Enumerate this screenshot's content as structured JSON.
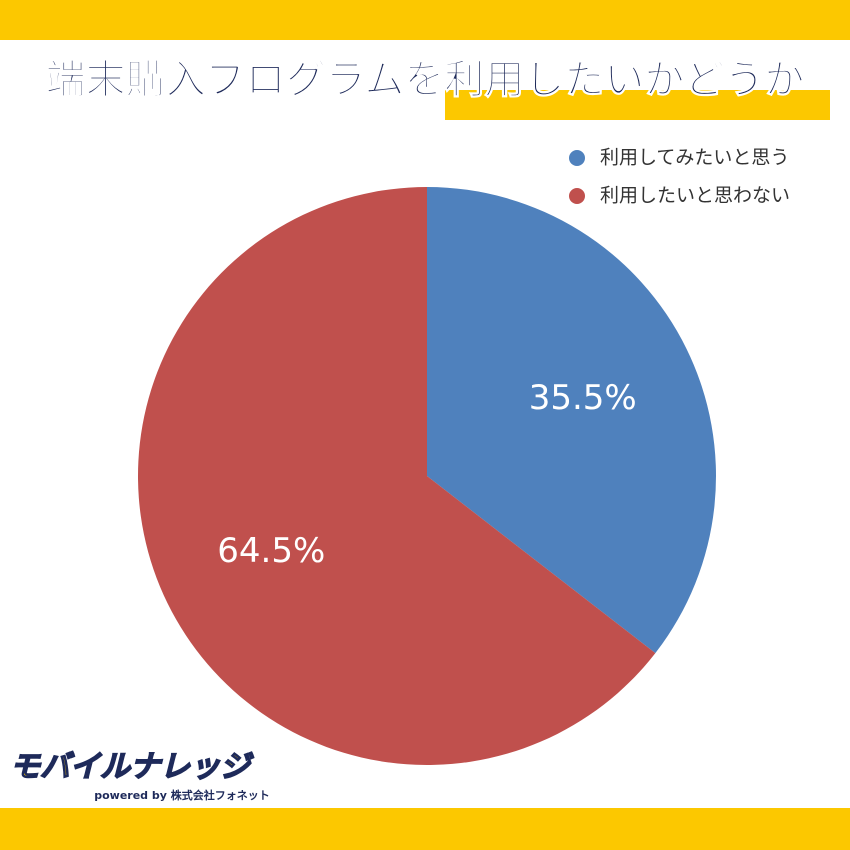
{
  "chart_data": {
    "type": "pie",
    "title": "端末購入プログラムを利用したいかどうか",
    "categories": [
      "利用してみたいと思う",
      "利用したいと思わない"
    ],
    "values": [
      35.5,
      64.5
    ],
    "value_labels": [
      "35.5%",
      "64.5%"
    ],
    "colors": [
      "#4f81bd",
      "#c0504d"
    ],
    "legend": "top-right",
    "brand": "モバイルナレッジ",
    "brand_sub": "powered by 株式会社フォネット"
  }
}
